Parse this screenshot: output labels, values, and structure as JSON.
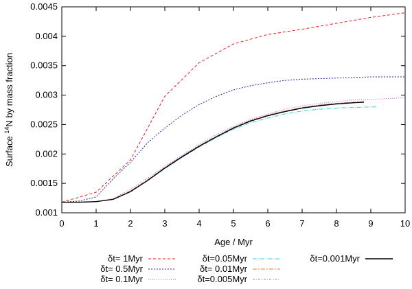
{
  "chart_data": {
    "type": "line",
    "xlabel": "Age / Myr",
    "ylabel_prefix": "Surface ",
    "ylabel_sup": "14",
    "ylabel_suffix": "N by mass fraction",
    "xlim": [
      0,
      10
    ],
    "ylim": [
      0.001,
      0.0045
    ],
    "xticks": [
      0,
      1,
      2,
      3,
      4,
      5,
      6,
      7,
      8,
      9,
      10
    ],
    "yticks": [
      0.001,
      0.0015,
      0.002,
      0.0025,
      0.003,
      0.0035,
      0.004,
      0.0045
    ],
    "xtick_labels": [
      "0",
      "1",
      "2",
      "3",
      "4",
      "5",
      "6",
      "7",
      "8",
      "9",
      "10"
    ],
    "ytick_labels": [
      "0.001",
      "0.0015",
      "0.002",
      "0.0025",
      "0.003",
      "0.0035",
      "0.004",
      "0.0045"
    ],
    "grid": false,
    "legend_position": "bottom",
    "series": [
      {
        "name": "δt=   1Myr",
        "color": "#e41a1c",
        "dash": "4,3",
        "x": [
          0,
          1,
          2,
          3,
          4,
          5,
          6,
          7,
          8,
          9,
          10
        ],
        "y": [
          0.00118,
          0.00135,
          0.0019,
          0.00298,
          0.00355,
          0.00387,
          0.00403,
          0.00412,
          0.00422,
          0.00432,
          0.0044
        ]
      },
      {
        "name": "δt= 0.5Myr",
        "color": "#1f1fb4",
        "dash": "2,2",
        "x": [
          0,
          0.5,
          1,
          1.5,
          2,
          2.5,
          3,
          3.5,
          4,
          4.5,
          5,
          5.5,
          6,
          6.5,
          7,
          7.5,
          8,
          8.5,
          9,
          9.5,
          10
        ],
        "y": [
          0.00118,
          0.0012,
          0.00127,
          0.00158,
          0.00186,
          0.00219,
          0.00244,
          0.00266,
          0.00284,
          0.00298,
          0.00309,
          0.00316,
          0.00321,
          0.00325,
          0.00327,
          0.00328,
          0.00329,
          0.0033,
          0.00331,
          0.00331,
          0.00331
        ]
      },
      {
        "name": "δt= 0.1Myr",
        "color": "#d24fd2",
        "dash": "1,2",
        "x": [
          0,
          0.5,
          1,
          1.5,
          2,
          2.5,
          3,
          3.5,
          4,
          4.5,
          5,
          5.5,
          6,
          6.5,
          7,
          7.5,
          8,
          8.5,
          9,
          9.5,
          10
        ],
        "y": [
          0.00118,
          0.00118,
          0.00119,
          0.00124,
          0.0014,
          0.00159,
          0.00179,
          0.00198,
          0.00216,
          0.00233,
          0.00247,
          0.00259,
          0.00268,
          0.00276,
          0.00282,
          0.00286,
          0.00289,
          0.00292,
          0.00293,
          0.00294,
          0.00296
        ]
      },
      {
        "name": "δt=0.05Myr",
        "color": "#35d2d2",
        "dash": "6,2,1,2",
        "x": [
          0,
          0.5,
          1,
          1.5,
          2,
          2.5,
          3,
          3.5,
          4,
          4.5,
          5,
          5.5,
          6,
          6.5,
          7,
          7.5,
          8,
          8.5,
          9,
          9.2
        ],
        "y": [
          0.00118,
          0.00118,
          0.00119,
          0.00123,
          0.00136,
          0.00155,
          0.00175,
          0.00194,
          0.00212,
          0.00228,
          0.00242,
          0.00253,
          0.00261,
          0.00268,
          0.00273,
          0.00276,
          0.00278,
          0.00279,
          0.0028,
          0.0028
        ]
      },
      {
        "name": "δt= 0.01Myr",
        "color": "#e67a2a",
        "dash": "6,2,2,2",
        "x": [
          0,
          0.5,
          1,
          1.5,
          2,
          2.5,
          3,
          3.5,
          4,
          4.5,
          5,
          5.5,
          6,
          6.5,
          7,
          7.5,
          8,
          8.5,
          8.8
        ],
        "y": [
          0.00118,
          0.00118,
          0.00119,
          0.00123,
          0.00137,
          0.00156,
          0.00177,
          0.00196,
          0.00214,
          0.0023,
          0.00245,
          0.00257,
          0.00266,
          0.00273,
          0.00279,
          0.00283,
          0.00286,
          0.00288,
          0.00289
        ]
      },
      {
        "name": "δt=0.005Myr",
        "color": "#8c8c8c",
        "dash": "3,2,1,2",
        "x": [
          0,
          0.5,
          1,
          1.5,
          2,
          2.5,
          3,
          3.5,
          4,
          4.5,
          5,
          5.5,
          6,
          6.5,
          7,
          7.5,
          8,
          8.5,
          8.8
        ],
        "y": [
          0.00118,
          0.00118,
          0.00119,
          0.00123,
          0.00137,
          0.00156,
          0.00177,
          0.00196,
          0.00214,
          0.0023,
          0.00245,
          0.00257,
          0.00266,
          0.00273,
          0.00279,
          0.00283,
          0.00286,
          0.00288,
          0.00289
        ]
      },
      {
        "name": "δt=0.001Myr",
        "color": "#000000",
        "dash": "",
        "x": [
          0,
          0.5,
          1,
          1.5,
          2,
          2.5,
          3,
          3.5,
          4,
          4.5,
          5,
          5.5,
          6,
          6.5,
          7,
          7.5,
          8,
          8.5,
          8.8
        ],
        "y": [
          0.00118,
          0.00118,
          0.00119,
          0.00123,
          0.00136,
          0.00155,
          0.00176,
          0.00195,
          0.00213,
          0.00229,
          0.00244,
          0.00256,
          0.00265,
          0.00272,
          0.00278,
          0.00282,
          0.00285,
          0.00287,
          0.00288
        ]
      }
    ]
  }
}
